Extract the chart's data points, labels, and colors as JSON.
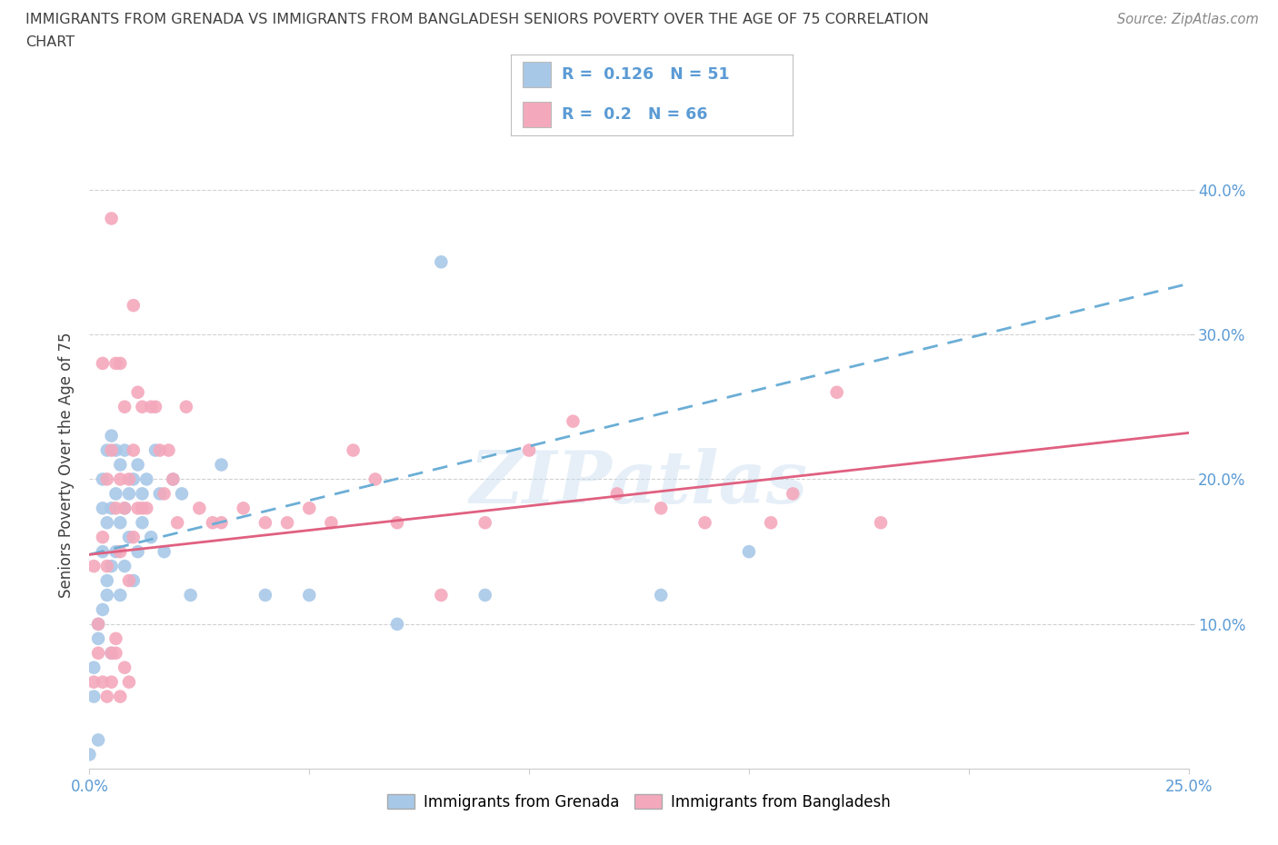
{
  "title_line1": "IMMIGRANTS FROM GRENADA VS IMMIGRANTS FROM BANGLADESH SENIORS POVERTY OVER THE AGE OF 75 CORRELATION",
  "title_line2": "CHART",
  "source_text": "Source: ZipAtlas.com",
  "xlabel_grenada": "Immigrants from Grenada",
  "xlabel_bangladesh": "Immigrants from Bangladesh",
  "ylabel": "Seniors Poverty Over the Age of 75",
  "watermark": "ZIPatlas",
  "xlim": [
    0.0,
    0.25
  ],
  "ylim": [
    0.0,
    0.42
  ],
  "grenada_R": 0.126,
  "grenada_N": 51,
  "bangladesh_R": 0.2,
  "bangladesh_N": 66,
  "grenada_color": "#a8c8e8",
  "bangladesh_color": "#f4a8bc",
  "grenada_line_color": "#6baed6",
  "bangladesh_line_color": "#e06080",
  "bg_color": "#ffffff",
  "title_color": "#404040",
  "axis_color": "#5b9bd5",
  "grid_color": "#cccccc",
  "grenada_line_x0": 0.0,
  "grenada_line_y0": 0.148,
  "grenada_line_x1": 0.25,
  "grenada_line_y1": 0.335,
  "bangladesh_line_x0": 0.0,
  "bangladesh_line_y0": 0.148,
  "bangladesh_line_x1": 0.25,
  "bangladesh_line_y1": 0.232,
  "grenada_x": [
    0.001,
    0.002,
    0.002,
    0.003,
    0.003,
    0.003,
    0.004,
    0.004,
    0.004,
    0.005,
    0.005,
    0.005,
    0.005,
    0.006,
    0.006,
    0.006,
    0.007,
    0.007,
    0.007,
    0.008,
    0.008,
    0.008,
    0.009,
    0.009,
    0.01,
    0.01,
    0.011,
    0.011,
    0.012,
    0.012,
    0.013,
    0.014,
    0.015,
    0.016,
    0.017,
    0.019,
    0.021,
    0.023,
    0.03,
    0.04,
    0.05,
    0.07,
    0.08,
    0.09,
    0.13,
    0.15,
    0.0,
    0.001,
    0.002,
    0.003,
    0.004
  ],
  "grenada_y": [
    0.05,
    0.02,
    0.1,
    0.15,
    0.18,
    0.2,
    0.12,
    0.17,
    0.22,
    0.08,
    0.14,
    0.18,
    0.23,
    0.15,
    0.19,
    0.22,
    0.12,
    0.17,
    0.21,
    0.14,
    0.18,
    0.22,
    0.16,
    0.19,
    0.13,
    0.2,
    0.15,
    0.21,
    0.17,
    0.19,
    0.2,
    0.16,
    0.22,
    0.19,
    0.15,
    0.2,
    0.19,
    0.12,
    0.21,
    0.12,
    0.12,
    0.1,
    0.35,
    0.12,
    0.12,
    0.15,
    0.01,
    0.07,
    0.09,
    0.11,
    0.13
  ],
  "bangladesh_x": [
    0.001,
    0.002,
    0.003,
    0.003,
    0.004,
    0.004,
    0.005,
    0.005,
    0.005,
    0.006,
    0.006,
    0.006,
    0.007,
    0.007,
    0.007,
    0.008,
    0.008,
    0.009,
    0.009,
    0.01,
    0.01,
    0.011,
    0.011,
    0.012,
    0.012,
    0.013,
    0.014,
    0.015,
    0.016,
    0.017,
    0.018,
    0.019,
    0.02,
    0.022,
    0.025,
    0.028,
    0.03,
    0.035,
    0.04,
    0.045,
    0.05,
    0.055,
    0.06,
    0.065,
    0.07,
    0.08,
    0.09,
    0.1,
    0.11,
    0.12,
    0.13,
    0.14,
    0.155,
    0.16,
    0.17,
    0.18,
    0.001,
    0.002,
    0.003,
    0.004,
    0.005,
    0.006,
    0.007,
    0.008,
    0.009,
    0.01
  ],
  "bangladesh_y": [
    0.14,
    0.1,
    0.28,
    0.16,
    0.2,
    0.14,
    0.38,
    0.22,
    0.08,
    0.28,
    0.18,
    0.09,
    0.28,
    0.2,
    0.15,
    0.25,
    0.18,
    0.2,
    0.13,
    0.22,
    0.16,
    0.26,
    0.18,
    0.25,
    0.18,
    0.18,
    0.25,
    0.25,
    0.22,
    0.19,
    0.22,
    0.2,
    0.17,
    0.25,
    0.18,
    0.17,
    0.17,
    0.18,
    0.17,
    0.17,
    0.18,
    0.17,
    0.22,
    0.2,
    0.17,
    0.12,
    0.17,
    0.22,
    0.24,
    0.19,
    0.18,
    0.17,
    0.17,
    0.19,
    0.26,
    0.17,
    0.06,
    0.08,
    0.06,
    0.05,
    0.06,
    0.08,
    0.05,
    0.07,
    0.06,
    0.32
  ]
}
